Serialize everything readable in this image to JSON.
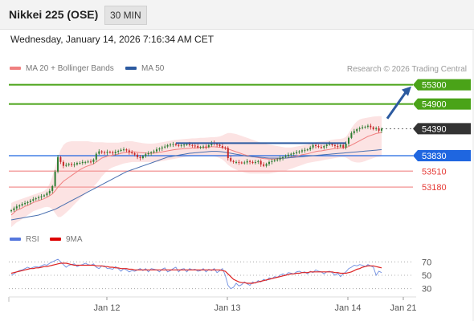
{
  "header": {
    "title": "Nikkei 225 (OSE)",
    "interval": "30 MIN"
  },
  "datetime": "Wednesday, January 14, 2026 7:16:34 AM CET",
  "legend_main": [
    {
      "label": "MA 20 + Bollinger Bands",
      "color": "#f08080"
    },
    {
      "label": "MA 50",
      "color": "#2c5aa0"
    }
  ],
  "credit": "Research © 2026 Trading Central",
  "legend_rsi": [
    {
      "label": "RSI",
      "color": "#5577dd"
    },
    {
      "label": "9MA",
      "color": "#dd0000"
    }
  ],
  "colors": {
    "resistance": "#4aa318",
    "support_strong": "#1f66e0",
    "support_weak": "#f4a3a3",
    "last_price": "#333333",
    "candle_up": "#2e7d32",
    "candle_down": "#c62828",
    "arrow": "#2c5aa0"
  },
  "chart_data": {
    "type": "candlestick",
    "y_range": [
      52700,
      55460
    ],
    "x_ticks": [
      "Jan 12",
      "Jan 13",
      "Jan 14",
      "Jan 21"
    ],
    "price_levels": [
      {
        "value": 55300,
        "label": "55300",
        "kind": "resistance"
      },
      {
        "value": 54900,
        "label": "54900",
        "kind": "resistance"
      },
      {
        "value": 54390,
        "label": "54390",
        "kind": "last"
      },
      {
        "value": 53830,
        "label": "53830",
        "kind": "pivot"
      },
      {
        "value": 53510,
        "label": "53510",
        "kind": "support"
      },
      {
        "value": 53180,
        "label": "53180",
        "kind": "support"
      }
    ],
    "close": [
      52700,
      52740,
      52780,
      52800,
      52830,
      52850,
      52870,
      52900,
      52930,
      52950,
      52970,
      52990,
      53010,
      53050,
      53100,
      53200,
      53500,
      53800,
      53700,
      53620,
      53640,
      53660,
      53640,
      53650,
      53680,
      53680,
      53700,
      53700,
      53710,
      53700,
      53750,
      53870,
      53920,
      53900,
      53890,
      53910,
      53900,
      53880,
      53910,
      53930,
      53950,
      53960,
      53940,
      53900,
      53880,
      53850,
      53800,
      53780,
      53820,
      53860,
      53880,
      53900,
      53920,
      53960,
      53980,
      54000,
      54020,
      54050,
      54060,
      54070,
      54050,
      54040,
      54050,
      54060,
      54070,
      54050,
      54040,
      54030,
      54000,
      54010,
      54020,
      54010,
      54050,
      54100,
      54080,
      54060,
      54030,
      54000,
      53990,
      53780,
      53720,
      53700,
      53700,
      53690,
      53680,
      53690,
      53720,
      53700,
      53680,
      53700,
      53720,
      53650,
      53620,
      53660,
      53700,
      53720,
      53740,
      53750,
      53780,
      53800,
      53820,
      53850,
      53870,
      53880,
      53900,
      53920,
      53940,
      53950,
      53960,
      54000,
      54050,
      54030,
      54010,
      54000,
      54030,
      54060,
      54080,
      54050,
      54030,
      54020,
      54050,
      54000,
      54080,
      54200,
      54300,
      54340,
      54380,
      54400,
      54420,
      54430,
      54450,
      54420,
      54380,
      54400,
      54350,
      54390
    ],
    "ma20": [
      52600,
      52650,
      52700,
      52720,
      52750,
      52780,
      52800,
      52830,
      52860,
      52880,
      52900,
      52920,
      52940,
      52970,
      53000,
      53040,
      53100,
      53180,
      53240,
      53300,
      53340,
      53380,
      53420,
      53460,
      53500,
      53540,
      53570,
      53600,
      53620,
      53640,
      53660,
      53700,
      53740,
      53780,
      53800,
      53820,
      53830,
      53840,
      53850,
      53860,
      53880,
      53890,
      53900,
      53905,
      53910,
      53910,
      53900,
      53895,
      53890,
      53885,
      53880,
      53880,
      53885,
      53890,
      53900,
      53910,
      53920,
      53930,
      53940,
      53950,
      53960,
      53965,
      53970,
      53975,
      53980,
      53985,
      53990,
      53990,
      53995,
      54000,
      54000,
      54005,
      54010,
      54015,
      54015,
      54010,
      54005,
      54000,
      53990,
      53970,
      53950,
      53930,
      53910,
      53890,
      53870,
      53850,
      53835,
      53820,
      53810,
      53800,
      53790,
      53780,
      53770,
      53765,
      53760,
      53760,
      53760,
      53765,
      53770,
      53775,
      53780,
      53790,
      53800,
      53810,
      53820,
      53835,
      53850,
      53860,
      53870,
      53885,
      53900,
      53915,
      53925,
      53930,
      53940,
      53950,
      53960,
      53970,
      53980,
      53985,
      53990,
      53995,
      54000,
      54020,
      54050,
      54080,
      54110,
      54140,
      54170,
      54200,
      54230,
      54250,
      54270,
      54290,
      54300,
      54310
    ],
    "bb_upper": [
      52850,
      52880,
      52900,
      52920,
      52940,
      52960,
      52980,
      53000,
      53020,
      53040,
      53060,
      53080,
      53100,
      53150,
      53250,
      53400,
      53600,
      53800,
      53950,
      54050,
      54100,
      54120,
      54130,
      54130,
      54130,
      54130,
      54130,
      54130,
      54130,
      54120,
      54110,
      54110,
      54110,
      54110,
      54105,
      54100,
      54100,
      54100,
      54100,
      54100,
      54110,
      54120,
      54130,
      54130,
      54130,
      54120,
      54110,
      54100,
      54090,
      54085,
      54080,
      54080,
      54085,
      54090,
      54100,
      54110,
      54120,
      54130,
      54140,
      54150,
      54160,
      54165,
      54170,
      54175,
      54180,
      54185,
      54190,
      54190,
      54195,
      54200,
      54200,
      54205,
      54210,
      54215,
      54215,
      54220,
      54230,
      54250,
      54280,
      54300,
      54300,
      54290,
      54280,
      54260,
      54240,
      54220,
      54200,
      54180,
      54160,
      54140,
      54120,
      54100,
      54080,
      54070,
      54060,
      54050,
      54040,
      54030,
      54020,
      54010,
      54000,
      54000,
      54000,
      54010,
      54020,
      54030,
      54040,
      54050,
      54060,
      54080,
      54100,
      54110,
      54120,
      54125,
      54130,
      54140,
      54150,
      54160,
      54170,
      54175,
      54180,
      54190,
      54220,
      54300,
      54400,
      54480,
      54540,
      54580,
      54600,
      54610,
      54620,
      54630,
      54640,
      54645,
      54650,
      54650
    ],
    "bb_lower": [
      52350,
      52400,
      52450,
      52480,
      52520,
      52560,
      52600,
      52640,
      52680,
      52700,
      52720,
      52740,
      52760,
      52770,
      52760,
      52720,
      52640,
      52560,
      52560,
      52600,
      52650,
      52700,
      52760,
      52820,
      52880,
      52940,
      52990,
      53040,
      53090,
      53140,
      53190,
      53250,
      53320,
      53400,
      53460,
      53520,
      53560,
      53590,
      53610,
      53630,
      53650,
      53670,
      53680,
      53690,
      53700,
      53700,
      53700,
      53700,
      53700,
      53700,
      53700,
      53700,
      53700,
      53700,
      53710,
      53720,
      53730,
      53740,
      53750,
      53760,
      53770,
      53780,
      53790,
      53800,
      53810,
      53815,
      53820,
      53820,
      53820,
      53820,
      53820,
      53820,
      53820,
      53820,
      53815,
      53800,
      53780,
      53750,
      53700,
      53640,
      53600,
      53570,
      53540,
      53520,
      53500,
      53480,
      53470,
      53460,
      53460,
      53460,
      53460,
      53460,
      53460,
      53460,
      53460,
      53470,
      53480,
      53490,
      53500,
      53510,
      53520,
      53540,
      53560,
      53580,
      53600,
      53620,
      53640,
      53660,
      53680,
      53690,
      53700,
      53710,
      53720,
      53730,
      53740,
      53750,
      53760,
      53770,
      53780,
      53790,
      53800,
      53800,
      53790,
      53760,
      53720,
      53700,
      53690,
      53690,
      53700,
      53720,
      53740,
      53760,
      53780,
      53800,
      53810,
      53820
    ],
    "ma50": [
      52500,
      52510,
      52520,
      52530,
      52540,
      52550,
      52560,
      52570,
      52580,
      52590,
      52600,
      52620,
      52640,
      52660,
      52680,
      52700,
      52720,
      52750,
      52780,
      52810,
      52840,
      52870,
      52900,
      52930,
      52960,
      52990,
      53020,
      53050,
      53080,
      53110,
      53140,
      53170,
      53200,
      53230,
      53260,
      53290,
      53320,
      53350,
      53380,
      53410,
      53440,
      53470,
      53500,
      53520,
      53540,
      53560,
      53580,
      53600,
      53620,
      53640,
      53660,
      53680,
      53700,
      53720,
      53740,
      53760,
      53780,
      53800,
      53810,
      53820,
      53830,
      53840,
      53850,
      53860,
      53870,
      53880,
      53885,
      53890,
      53895,
      53900,
      53905,
      53910,
      53915,
      53920,
      53920,
      53920,
      53915,
      53910,
      53900,
      53890,
      53880,
      53870,
      53860,
      53850,
      53840,
      53830,
      53820,
      53815,
      53810,
      53805,
      53800,
      53795,
      53790,
      53785,
      53780,
      53780,
      53780,
      53780,
      53780,
      53780,
      53780,
      53785,
      53790,
      53795,
      53800,
      53805,
      53810,
      53815,
      53820,
      53825,
      53830,
      53835,
      53840,
      53845,
      53850,
      53855,
      53860,
      53865,
      53870,
      53875,
      53880,
      53885,
      53890,
      53895,
      53900,
      53905,
      53910,
      53915,
      53920,
      53925,
      53930,
      53935,
      53940,
      53945,
      53950,
      53955
    ],
    "rsi_axis": [
      70,
      50,
      30
    ],
    "rsi": [
      50,
      52,
      55,
      57,
      58,
      60,
      62,
      60,
      62,
      63,
      62,
      64,
      66,
      65,
      68,
      70,
      72,
      74,
      70,
      66,
      62,
      65,
      66,
      67,
      63,
      65,
      66,
      68,
      66,
      65,
      67,
      62,
      60,
      64,
      64,
      60,
      60,
      59,
      63,
      60,
      56,
      60,
      58,
      55,
      57,
      56,
      58,
      60,
      57,
      60,
      55,
      60,
      59,
      58,
      55,
      59,
      61,
      55,
      57,
      60,
      62,
      55,
      59,
      60,
      55,
      60,
      58,
      59,
      56,
      57,
      60,
      55,
      59,
      57,
      60,
      54,
      57,
      60,
      50,
      35,
      30,
      32,
      38,
      34,
      36,
      40,
      37,
      35,
      40,
      38,
      42,
      40,
      44,
      42,
      46,
      45,
      48,
      47,
      50,
      52,
      50,
      54,
      53,
      52,
      55,
      56,
      54,
      55,
      52,
      56,
      54,
      58,
      56,
      55,
      52,
      55,
      56,
      54,
      50,
      53,
      48,
      52,
      55,
      60,
      62,
      65,
      64,
      66,
      65,
      63,
      66,
      64,
      62,
      50,
      56,
      54
    ],
    "rsi_ma": [
      53,
      54,
      55,
      56,
      57,
      58,
      59,
      60,
      60,
      61,
      61,
      62,
      63,
      63,
      64,
      65,
      66,
      67,
      68,
      68,
      68,
      67,
      66,
      65,
      65,
      65,
      65,
      65,
      65,
      65,
      65,
      64,
      64,
      64,
      63,
      63,
      62,
      62,
      61,
      61,
      60,
      60,
      60,
      59,
      59,
      58,
      58,
      58,
      58,
      58,
      58,
      58,
      58,
      58,
      58,
      58,
      58,
      58,
      58,
      58,
      58,
      58,
      58,
      58,
      58,
      58,
      58,
      58,
      58,
      58,
      58,
      58,
      58,
      58,
      58,
      58,
      58,
      57,
      56,
      52,
      48,
      44,
      42,
      40,
      39,
      39,
      38,
      38,
      38,
      39,
      40,
      41,
      42,
      43,
      44,
      45,
      46,
      47,
      48,
      49,
      50,
      51,
      52,
      52,
      53,
      53,
      54,
      54,
      54,
      55,
      55,
      55,
      55,
      55,
      55,
      55,
      55,
      55,
      54,
      54,
      53,
      53,
      53,
      54,
      55,
      57,
      59,
      60,
      62,
      63,
      64,
      64,
      64,
      63,
      62,
      61
    ]
  }
}
